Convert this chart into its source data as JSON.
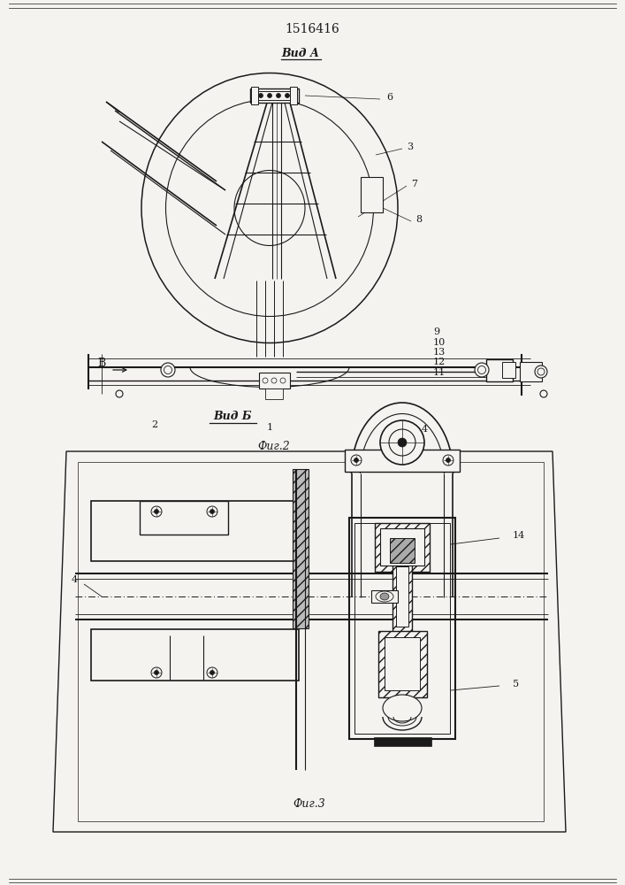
{
  "title": "1516416",
  "bg_color": "#f5f3ef",
  "line_color": "#1a1a1a",
  "label_A": "Вид А",
  "label_B": "Вид Б",
  "fig2_label": "Фиг.2",
  "fig3_label": "Фиг.3"
}
